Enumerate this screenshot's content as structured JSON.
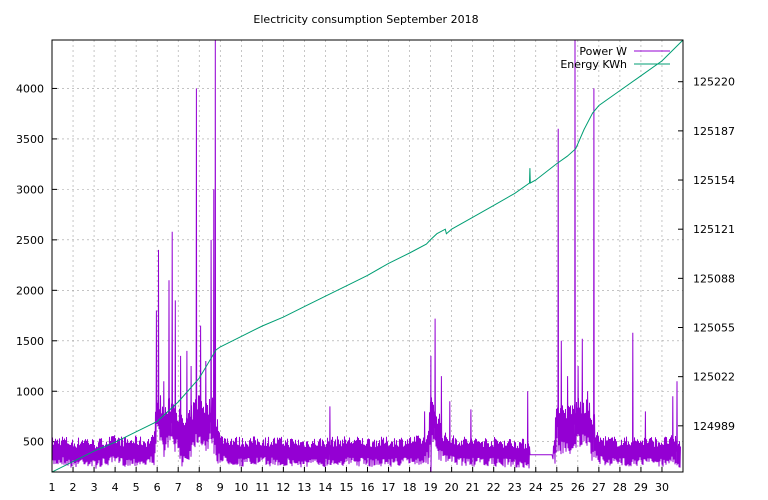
{
  "chart_data": {
    "type": "line",
    "title": "Electricity consumption September 2018",
    "x_ticks": [
      1,
      2,
      3,
      4,
      5,
      6,
      7,
      8,
      9,
      10,
      11,
      12,
      13,
      14,
      15,
      16,
      17,
      18,
      19,
      20,
      21,
      22,
      23,
      24,
      25,
      26,
      27,
      28,
      29,
      30
    ],
    "xlim": [
      1,
      31
    ],
    "y_left_ticks": [
      500,
      1000,
      1500,
      2000,
      2500,
      3000,
      3500,
      4000
    ],
    "y_left_lim": [
      200,
      4480
    ],
    "y_right_ticks": [
      124989,
      125022,
      125055,
      125088,
      125121,
      125154,
      125187,
      125220
    ],
    "y_right_lim": [
      124958,
      125248
    ],
    "grid": true,
    "legend_position": "top-right",
    "colors": {
      "power": "#9400d3",
      "energy": "#009e73"
    },
    "series": [
      {
        "name": "Power W",
        "axis": "left",
        "style": "noisy",
        "base": [
          [
            1.0,
            400
          ],
          [
            1.5,
            420
          ],
          [
            2.0,
            380
          ],
          [
            2.5,
            420
          ],
          [
            3.0,
            380
          ],
          [
            3.5,
            400
          ],
          [
            4.0,
            420
          ],
          [
            4.5,
            400
          ],
          [
            5.0,
            410
          ],
          [
            5.5,
            400
          ],
          [
            5.8,
            430
          ],
          [
            6.0,
            800
          ],
          [
            6.3,
            600
          ],
          [
            6.6,
            700
          ],
          [
            6.9,
            650
          ],
          [
            7.2,
            500
          ],
          [
            7.5,
            550
          ],
          [
            7.8,
            700
          ],
          [
            8.0,
            750
          ],
          [
            8.3,
            650
          ],
          [
            8.6,
            700
          ],
          [
            8.9,
            500
          ],
          [
            9.0,
            430
          ],
          [
            10.0,
            400
          ],
          [
            11.0,
            410
          ],
          [
            12.0,
            400
          ],
          [
            13.0,
            390
          ],
          [
            14.0,
            400
          ],
          [
            15.0,
            410
          ],
          [
            16.0,
            400
          ],
          [
            17.0,
            400
          ],
          [
            18.0,
            410
          ],
          [
            18.8,
            420
          ],
          [
            19.0,
            700
          ],
          [
            19.3,
            600
          ],
          [
            19.6,
            450
          ],
          [
            20.0,
            420
          ],
          [
            21.0,
            400
          ],
          [
            22.0,
            400
          ],
          [
            23.0,
            390
          ],
          [
            23.5,
            380
          ],
          [
            23.7,
            370
          ],
          [
            24.8,
            370
          ],
          [
            25.0,
            650
          ],
          [
            25.5,
            600
          ],
          [
            26.0,
            700
          ],
          [
            26.5,
            650
          ],
          [
            26.8,
            500
          ],
          [
            27.0,
            420
          ],
          [
            28.0,
            400
          ],
          [
            29.0,
            410
          ],
          [
            30.0,
            400
          ],
          [
            30.5,
            420
          ],
          [
            30.9,
            380
          ]
        ],
        "spikes": [
          [
            5.95,
            1800
          ],
          [
            6.05,
            2400
          ],
          [
            6.3,
            1100
          ],
          [
            6.55,
            2100
          ],
          [
            6.7,
            2580
          ],
          [
            6.85,
            1900
          ],
          [
            7.1,
            1350
          ],
          [
            7.4,
            1400
          ],
          [
            7.6,
            1250
          ],
          [
            7.85,
            4000
          ],
          [
            8.05,
            1650
          ],
          [
            8.3,
            1300
          ],
          [
            8.55,
            2500
          ],
          [
            8.68,
            3000
          ],
          [
            8.75,
            4480
          ],
          [
            14.2,
            850
          ],
          [
            18.7,
            800
          ],
          [
            19.0,
            1350
          ],
          [
            19.2,
            1720
          ],
          [
            19.5,
            1150
          ],
          [
            19.9,
            900
          ],
          [
            20.9,
            820
          ],
          [
            23.6,
            1000
          ],
          [
            25.05,
            3600
          ],
          [
            25.2,
            1500
          ],
          [
            25.5,
            1150
          ],
          [
            25.85,
            4480
          ],
          [
            26.0,
            1250
          ],
          [
            26.2,
            1520
          ],
          [
            26.45,
            1000
          ],
          [
            26.75,
            4000
          ],
          [
            28.6,
            1580
          ],
          [
            29.2,
            800
          ],
          [
            30.5,
            950
          ],
          [
            30.7,
            1100
          ]
        ]
      },
      {
        "name": "Energy KWh",
        "axis": "right",
        "style": "smooth",
        "points": [
          [
            1.0,
            124958
          ],
          [
            2.0,
            124965
          ],
          [
            3.0,
            124972
          ],
          [
            4.0,
            124978
          ],
          [
            5.0,
            124985
          ],
          [
            6.0,
            124992
          ],
          [
            7.0,
            125005
          ],
          [
            8.0,
            125021
          ],
          [
            8.8,
            125040
          ],
          [
            9.0,
            125042
          ],
          [
            10.0,
            125049
          ],
          [
            11.0,
            125056
          ],
          [
            12.0,
            125062
          ],
          [
            13.0,
            125069
          ],
          [
            14.0,
            125076
          ],
          [
            15.0,
            125083
          ],
          [
            16.0,
            125090
          ],
          [
            17.0,
            125098
          ],
          [
            18.0,
            125105
          ],
          [
            18.8,
            125111
          ],
          [
            19.0,
            125114
          ],
          [
            19.3,
            125118
          ],
          [
            19.7,
            125121
          ],
          [
            19.75,
            125118
          ],
          [
            20.0,
            125121
          ],
          [
            21.0,
            125129
          ],
          [
            22.0,
            125137
          ],
          [
            23.0,
            125145
          ],
          [
            23.7,
            125152
          ],
          [
            23.72,
            125162
          ],
          [
            23.74,
            125152
          ],
          [
            24.0,
            125154
          ],
          [
            25.0,
            125165
          ],
          [
            25.5,
            125170
          ],
          [
            25.9,
            125175
          ],
          [
            26.3,
            125188
          ],
          [
            26.7,
            125199
          ],
          [
            27.0,
            125204
          ],
          [
            28.0,
            125214
          ],
          [
            29.0,
            125224
          ],
          [
            30.0,
            125234
          ],
          [
            31.0,
            125248
          ]
        ]
      }
    ]
  }
}
